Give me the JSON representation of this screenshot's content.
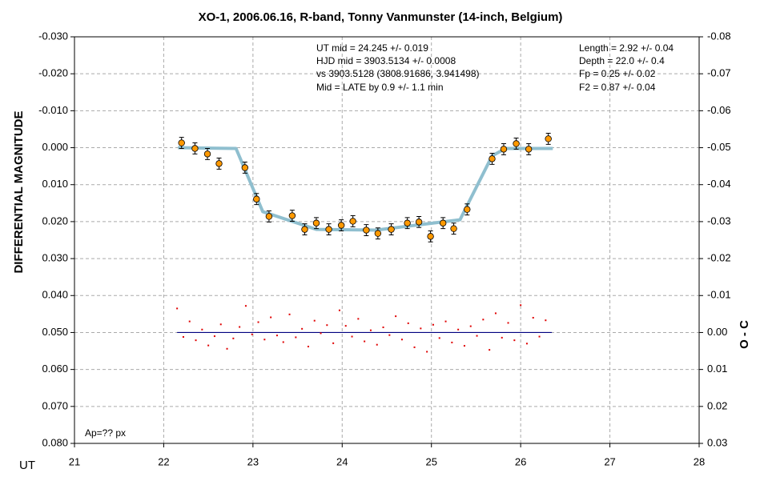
{
  "chart_data": {
    "type": "scatter",
    "title": "XO-1, 2006.06.16, R-band, Tonny Vanmunster (14-inch, Belgium)",
    "x_label": "UT",
    "y_label": "DIFFERENTIAL MAGNITUDE",
    "y2_label": "O - C",
    "annotations": [
      "UT mid = 24.245 +/- 0.019",
      "HJD mid = 3903.5134 +/- 0.0008",
      "vs 3903.5128  (3808.91686, 3.941498)",
      "Mid = LATE by 0.9 +/- 1.1 min",
      "Length = 2.92 +/- 0.04",
      "Depth = 22.0 +/- 0.4",
      "Fp = 0.25 +/- 0.02",
      "F2 = 0.87 +/- 0.04",
      "Ap=?? px"
    ],
    "xlim": [
      21,
      28
    ],
    "xticks": [
      21,
      22,
      23,
      24,
      25,
      26,
      27,
      28
    ],
    "ylim": [
      -0.03,
      0.08
    ],
    "yticks": [
      {
        "value": -0.03,
        "label": "-0.030"
      },
      {
        "value": -0.02,
        "label": "-0.020"
      },
      {
        "value": -0.01,
        "label": "-0.010"
      },
      {
        "value": 0,
        "label": "0.000"
      },
      {
        "value": 0.01,
        "label": "0.010"
      },
      {
        "value": 0.02,
        "label": "0.020"
      },
      {
        "value": 0.03,
        "label": "0.030"
      },
      {
        "value": 0.04,
        "label": "0.040"
      },
      {
        "value": 0.05,
        "label": "0.050"
      },
      {
        "value": 0.06,
        "label": "0.060"
      },
      {
        "value": 0.07,
        "label": "0.070"
      },
      {
        "value": 0.08,
        "label": "0.080"
      }
    ],
    "y2lim": [
      -0.08,
      0.03
    ],
    "y2ticks": [
      -0.08,
      -0.07,
      -0.06,
      -0.05,
      -0.04,
      -0.03,
      -0.02,
      -0.01,
      {
        "value": 0,
        "label": "0.00"
      },
      0.01,
      0.02,
      0.03
    ],
    "y_inverted": true,
    "grid": true,
    "observations": {
      "color": "#ff9900",
      "x": [
        22.2,
        22.35,
        22.49,
        22.62,
        22.91,
        23.04,
        23.18,
        23.44,
        23.58,
        23.71,
        23.85,
        23.99,
        24.12,
        24.27,
        24.4,
        24.55,
        24.73,
        24.86,
        24.99,
        25.13,
        25.25,
        25.4,
        25.68,
        25.81,
        25.95,
        26.09,
        26.31
      ],
      "values": [
        -0.0013,
        0.0002,
        0.0017,
        0.0043,
        0.0054,
        0.0139,
        0.0186,
        0.0184,
        0.0221,
        0.0204,
        0.0221,
        0.021,
        0.0199,
        0.0223,
        0.0232,
        0.0221,
        0.0204,
        0.0201,
        0.024,
        0.0204,
        0.0219,
        0.0167,
        0.003,
        0.0004,
        -0.0011,
        0.0004,
        -0.0024
      ],
      "errors": [
        0.0015,
        0.0015,
        0.0015,
        0.0015,
        0.0015,
        0.0015,
        0.0015,
        0.0015,
        0.0015,
        0.0015,
        0.0015,
        0.0015,
        0.0015,
        0.0015,
        0.0015,
        0.0015,
        0.0015,
        0.0015,
        0.0015,
        0.0015,
        0.0015,
        0.0015,
        0.0015,
        0.0015,
        0.0015,
        0.0015,
        0.0015
      ]
    },
    "model": {
      "color": "#8fbfcf",
      "x": [
        22.16,
        22.81,
        23.11,
        23.71,
        24.38,
        25.32,
        25.68,
        25.83,
        26.36
      ],
      "values": [
        0,
        0.0002,
        0.0173,
        0.0221,
        0.0223,
        0.0195,
        0.0022,
        0.0002,
        0.0002
      ]
    },
    "residuals": {
      "color": "#e00000",
      "axis": "y2",
      "x": [
        22.15,
        22.22,
        22.29,
        22.36,
        22.43,
        22.5,
        22.57,
        22.64,
        22.71,
        22.78,
        22.85,
        22.92,
        22.99,
        23.06,
        23.13,
        23.2,
        23.27,
        23.34,
        23.41,
        23.48,
        23.55,
        23.62,
        23.69,
        23.76,
        23.83,
        23.9,
        23.97,
        24.04,
        24.11,
        24.18,
        24.25,
        24.32,
        24.39,
        24.46,
        24.53,
        24.6,
        24.67,
        24.74,
        24.81,
        24.88,
        24.95,
        25.02,
        25.09,
        25.16,
        25.23,
        25.3,
        25.37,
        25.44,
        25.51,
        25.58,
        25.65,
        25.72,
        25.79,
        25.86,
        25.93,
        26.0,
        26.07,
        26.14,
        26.21,
        26.28
      ],
      "values": [
        -0.0065,
        0.0012,
        -0.003,
        0.0021,
        -0.0008,
        0.0035,
        0.001,
        -0.0022,
        0.0044,
        0.0016,
        -0.0015,
        -0.0072,
        0.0005,
        -0.0028,
        0.0019,
        -0.0041,
        0.0008,
        0.0026,
        -0.0049,
        0.0013,
        -0.001,
        0.0038,
        -0.0032,
        0.0002,
        -0.002,
        0.0029,
        -0.006,
        -0.0018,
        0.0011,
        -0.0037,
        0.0024,
        -0.0006,
        0.0033,
        -0.0014,
        0.0007,
        -0.0044,
        0.0019,
        -0.0025,
        0.004,
        -0.0011,
        0.0052,
        -0.0021,
        0.0015,
        -0.003,
        0.0027,
        -0.0008,
        0.0036,
        -0.0017,
        0.0009,
        -0.0035,
        0.0047,
        -0.0052,
        0.0014,
        -0.0026,
        0.0021,
        -0.0074,
        0.003,
        -0.004,
        0.0011,
        -0.0033
      ]
    },
    "zero_line": {
      "color": "#000080",
      "axis": "y2",
      "x": [
        22.15,
        26.35
      ],
      "values": [
        0,
        0
      ]
    }
  }
}
